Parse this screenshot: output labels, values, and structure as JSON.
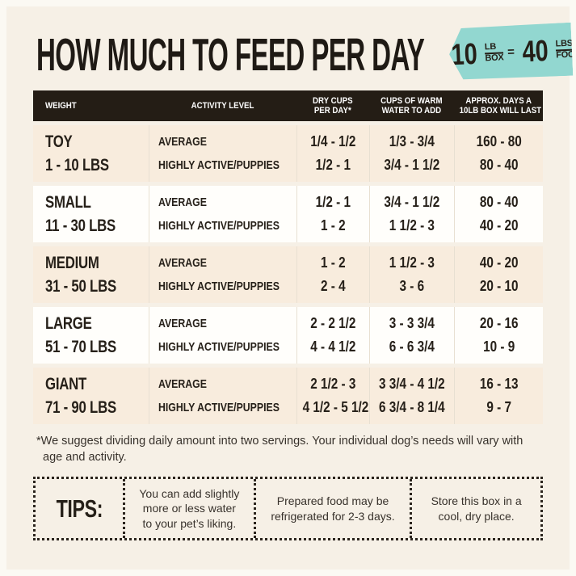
{
  "colors": {
    "background": "#f6f0e6",
    "accent_teal": "#92d7d0",
    "table_header_bg": "#241d15",
    "row_beige": "#f8ecdd",
    "row_white": "#fffefb",
    "text_dark": "#241e17"
  },
  "header": {
    "title": "HOW MUCH TO FEED PER DAY",
    "badge": {
      "qty1": "10",
      "unit1_top": "LB",
      "unit1_bottom": "BOX",
      "equals": "=",
      "qty2": "40",
      "unit2_top": "LBS",
      "unit2_script": "of",
      "unit2_bottom": "FOOD!"
    }
  },
  "table": {
    "headers": [
      {
        "line1": "WEIGHT",
        "line2": ""
      },
      {
        "line1": "ACTIVITY LEVEL",
        "line2": ""
      },
      {
        "line1": "DRY CUPS",
        "line2": "PER DAY*"
      },
      {
        "line1": "CUPS OF WARM",
        "line2": "WATER TO ADD"
      },
      {
        "line1": "APPROX. DAYS A",
        "line2": "10LB BOX WILL LAST"
      }
    ],
    "rows": [
      {
        "size": "TOY",
        "range": "1 - 10 LBS",
        "levels": [
          {
            "label": "AVERAGE",
            "dry": "1/4 - 1/2",
            "water": "1/3 - 3/4",
            "days": "160 - 80"
          },
          {
            "label": "HIGHLY ACTIVE/PUPPIES",
            "dry": "1/2 - 1",
            "water": "3/4 - 1 1/2",
            "days": "80 - 40"
          }
        ]
      },
      {
        "size": "SMALL",
        "range": "11 - 30 LBS",
        "levels": [
          {
            "label": "AVERAGE",
            "dry": "1/2 - 1",
            "water": "3/4 - 1 1/2",
            "days": "80 - 40"
          },
          {
            "label": "HIGHLY ACTIVE/PUPPIES",
            "dry": "1 - 2",
            "water": "1 1/2 - 3",
            "days": "40 - 20"
          }
        ]
      },
      {
        "size": "MEDIUM",
        "range": "31 - 50 LBS",
        "levels": [
          {
            "label": "AVERAGE",
            "dry": "1 - 2",
            "water": "1 1/2 - 3",
            "days": "40 - 20"
          },
          {
            "label": "HIGHLY ACTIVE/PUPPIES",
            "dry": "2 - 4",
            "water": "3 - 6",
            "days": "20 - 10"
          }
        ]
      },
      {
        "size": "LARGE",
        "range": "51 - 70 LBS",
        "levels": [
          {
            "label": "AVERAGE",
            "dry": "2 - 2 1/2",
            "water": "3 - 3 3/4",
            "days": "20 - 16"
          },
          {
            "label": "HIGHLY ACTIVE/PUPPIES",
            "dry": "4 - 4 1/2",
            "water": "6 - 6 3/4",
            "days": "10 - 9"
          }
        ]
      },
      {
        "size": "GIANT",
        "range": "71 - 90 LBS",
        "levels": [
          {
            "label": "AVERAGE",
            "dry": "2 1/2 - 3",
            "water": "3 3/4 - 4 1/2",
            "days": "16 - 13"
          },
          {
            "label": "HIGHLY ACTIVE/PUPPIES",
            "dry": "4 1/2 - 5 1/2",
            "water": "6 3/4 - 8 1/4",
            "days": "9 - 7"
          }
        ]
      }
    ]
  },
  "footnote": "*We suggest dividing daily amount into two servings. Your individual dog’s needs will vary with age and activity.",
  "tips": {
    "label": "TIPS:",
    "items": [
      "You can add slightly more or less water to your pet’s liking.",
      "Prepared food may be refrigerated for 2-3 days.",
      "Store this box in a cool, dry place."
    ]
  }
}
